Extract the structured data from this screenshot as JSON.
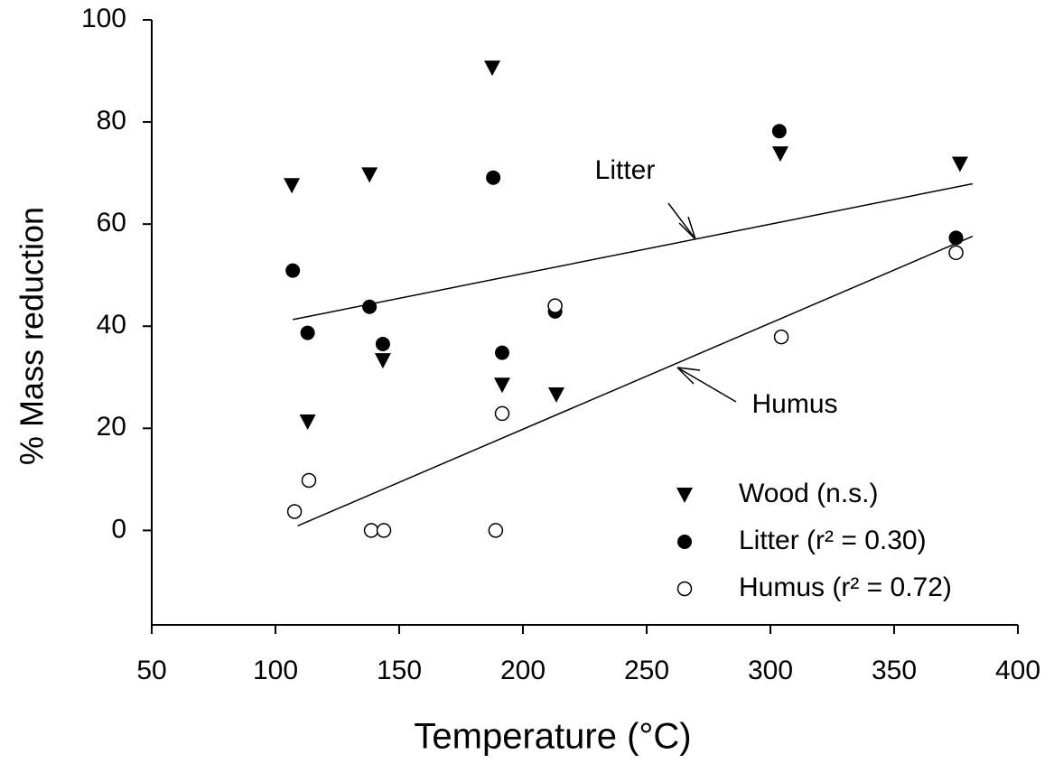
{
  "chart_data": {
    "type": "scatter",
    "x_label": "Temperature (°C)",
    "y_label": "% Mass reduction",
    "xlim": [
      50,
      400
    ],
    "xticks": [
      50,
      100,
      150,
      200,
      250,
      300,
      350,
      400
    ],
    "ylim": [
      -18.5,
      100
    ],
    "yticks": [
      0,
      20,
      40,
      60,
      80,
      100
    ],
    "series": [
      {
        "name": "Wood (n.s.)",
        "marker": "triangle-down",
        "color": "#000000",
        "x": [
          106.6,
          138,
          187.6,
          113,
          143.4,
          191.6,
          213.5,
          304,
          376.6
        ],
        "values": [
          67.6,
          69.7,
          90.6,
          21.3,
          33.3,
          28.5,
          26.6,
          73.8,
          71.8
        ]
      },
      {
        "name": "Litter (r² = 0.30)",
        "marker": "filled-circle",
        "color": "#000000",
        "x": [
          107,
          113,
          138,
          143.4,
          188,
          191.6,
          213,
          303.6,
          375
        ],
        "values": [
          50.9,
          38.7,
          43.8,
          36.5,
          69.1,
          34.8,
          42.9,
          78.2,
          57.3
        ]
      },
      {
        "name": "Humus (r² = 0.72)",
        "marker": "open-circle",
        "color": "#000000",
        "x": [
          107.7,
          113.5,
          138.7,
          143.8,
          189,
          191.6,
          213,
          304.4,
          375
        ],
        "values": [
          3.7,
          9.8,
          0,
          0,
          0,
          22.9,
          44,
          37.9,
          54.4
        ]
      }
    ],
    "trend_lines": [
      {
        "label": "Litter",
        "x": [
          107,
          381.7
        ],
        "values": [
          41.3,
          67.9
        ]
      },
      {
        "label": "Humus",
        "x": [
          109,
          381.7
        ],
        "values": [
          0.9,
          57.6
        ]
      }
    ]
  }
}
